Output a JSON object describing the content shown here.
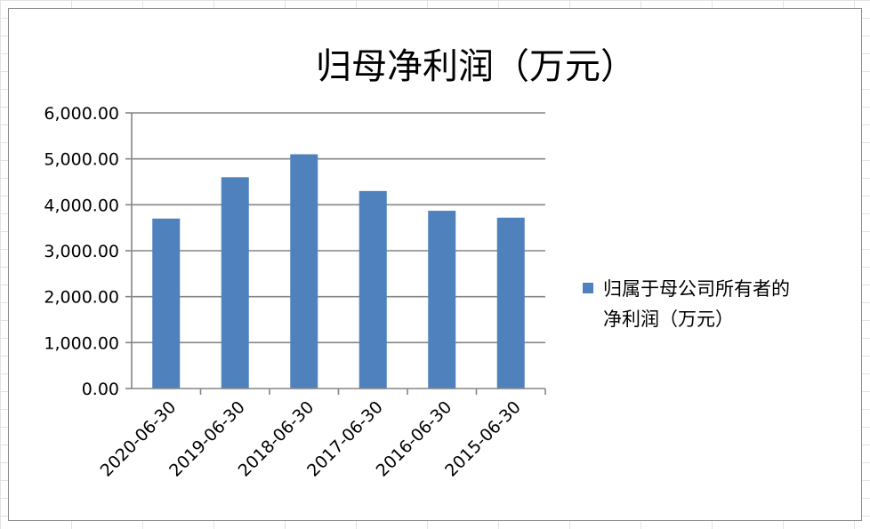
{
  "chart_data": {
    "type": "bar",
    "title": "归母净利润（万元）",
    "categories": [
      "2020-06-30",
      "2019-06-30",
      "2018-06-30",
      "2017-06-30",
      "2016-06-30",
      "2015-06-30"
    ],
    "series": [
      {
        "name": "归属于母公司所有者的净利润（万元）",
        "values": [
          3700,
          4600,
          5100,
          4300,
          3870,
          3720
        ]
      }
    ],
    "y_ticks": [
      "0.00",
      "1,000.00",
      "2,000.00",
      "3,000.00",
      "4,000.00",
      "5,000.00",
      "6,000.00"
    ],
    "ylim": [
      0,
      6000
    ],
    "grid": true,
    "legend_position": "right",
    "legend_lines": [
      "归属于母公司所有者的",
      "净利润（万元）"
    ],
    "colors": {
      "bar": "#4f81bd",
      "grid": "#868686",
      "axis": "#868686"
    }
  }
}
